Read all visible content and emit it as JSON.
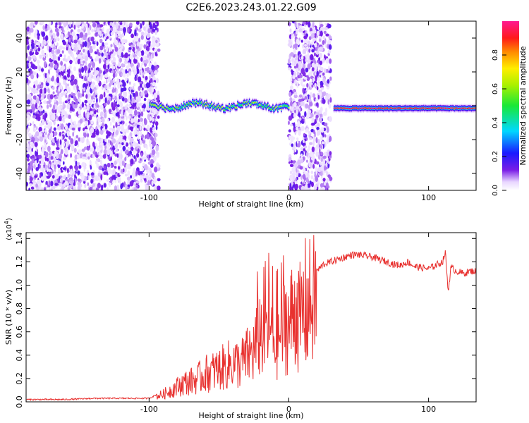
{
  "title": "C2E6.2023.243.01.22.G09",
  "chart_data": [
    {
      "type": "heatmap",
      "xlabel": "Height of straight line (km)",
      "ylabel": "Frequency (Hz)",
      "xlim": [
        -188,
        134
      ],
      "ylim": [
        -50,
        50
      ],
      "xticks": [
        -100,
        0,
        100
      ],
      "yticks": [
        -40,
        -20,
        0,
        20,
        40
      ],
      "colorbar": {
        "label": "Normalized spectral amplitude",
        "range": [
          0,
          1
        ],
        "ticks": [
          0.0,
          0.2,
          0.4,
          0.6,
          0.8
        ],
        "colormap": "rainbow (purple → blue → cyan → green → yellow → orange → red → magenta)"
      },
      "regions": [
        {
          "x_range": [
            -188,
            -93
          ],
          "description": "broadband noise"
        },
        {
          "x_range": [
            -100,
            0
          ],
          "description": "narrow signal trace near 0 Hz, amplitude ~0.3-0.7"
        },
        {
          "x_range": [
            0,
            30
          ],
          "description": "broadband noise"
        },
        {
          "x_range": [
            32,
            134
          ],
          "description": "strong narrow trace near -1.5 Hz, amplitude up to ~1.0"
        }
      ]
    },
    {
      "type": "line",
      "xlabel": "Height of straight line (km)",
      "ylabel": "SNR (10 * v/v)",
      "y_multiplier": "(x10^4)",
      "xlim": [
        -188,
        134
      ],
      "ylim": [
        0,
        1.45
      ],
      "xticks": [
        -100,
        0,
        100
      ],
      "yticks": [
        0.0,
        0.2,
        0.4,
        0.6,
        0.8,
        1.0,
        1.2,
        1.4
      ],
      "series": [
        {
          "color": "#e8312f",
          "x": [
            -188,
            -160,
            -140,
            -120,
            -100,
            -95,
            -90,
            -85,
            -80,
            -75,
            -70,
            -65,
            -60,
            -55,
            -50,
            -45,
            -40,
            -35,
            -30,
            -25,
            -20,
            -18,
            -15,
            -10,
            -5,
            -2,
            0,
            3,
            6,
            8,
            10,
            12,
            15,
            18,
            20,
            25,
            30,
            35,
            40,
            45,
            50,
            55,
            60,
            65,
            70,
            75,
            80,
            85,
            90,
            95,
            100,
            105,
            110,
            112,
            114,
            116,
            120,
            125,
            130,
            134
          ],
          "y": [
            0.02,
            0.02,
            0.03,
            0.03,
            0.03,
            0.06,
            0.08,
            0.12,
            0.16,
            0.2,
            0.22,
            0.25,
            0.3,
            0.32,
            0.35,
            0.38,
            0.42,
            0.4,
            0.48,
            0.55,
            0.78,
            0.7,
            0.85,
            0.65,
            0.75,
            0.9,
            0.8,
            0.95,
            1.05,
            0.75,
            1.0,
            0.95,
            1.05,
            1.08,
            1.12,
            1.18,
            1.2,
            1.22,
            1.24,
            1.26,
            1.26,
            1.25,
            1.24,
            1.22,
            1.2,
            1.18,
            1.17,
            1.2,
            1.16,
            1.15,
            1.14,
            1.17,
            1.2,
            1.28,
            0.95,
            1.15,
            1.12,
            1.1,
            1.12,
            1.12
          ]
        }
      ]
    }
  ]
}
